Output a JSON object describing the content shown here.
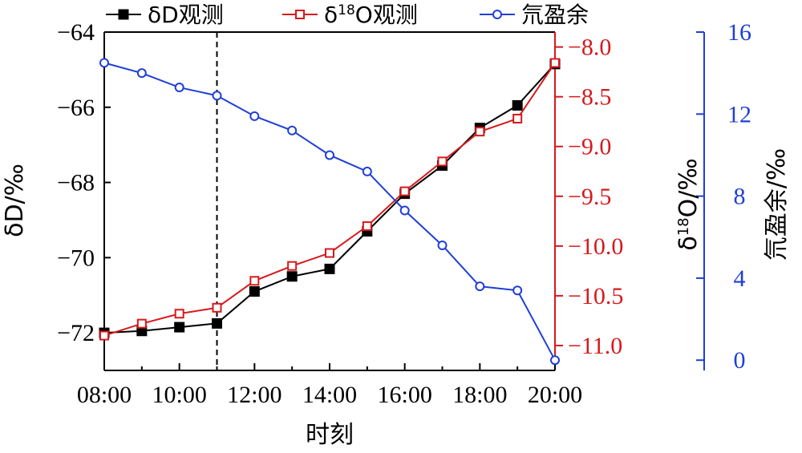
{
  "chart_data": {
    "type": "line",
    "xlabel": "时刻",
    "x": [
      "08:00",
      "09:00",
      "10:00",
      "11:00",
      "12:00",
      "13:00",
      "14:00",
      "15:00",
      "16:00",
      "17:00",
      "18:00",
      "19:00",
      "20:00"
    ],
    "x_ticks": [
      "08:00",
      "10:00",
      "12:00",
      "14:00",
      "16:00",
      "18:00",
      "20:00"
    ],
    "vline_at": "11:00",
    "axes": {
      "left": {
        "label": "δD/‰",
        "lim": [
          -73,
          -64
        ],
        "ticks": [
          "−64",
          "−66",
          "−68",
          "−70",
          "−72"
        ],
        "tick_values": [
          -64,
          -66,
          -68,
          -70,
          -72
        ],
        "color": "#000000"
      },
      "right1": {
        "label_prefix": "δ",
        "label_sup": "18",
        "label_suffix": "O/‰",
        "lim": [
          -11.25,
          -7.85
        ],
        "ticks": [
          "−8.0",
          "−8.5",
          "−9.0",
          "−9.5",
          "−10.0",
          "−10.5",
          "−11.0"
        ],
        "tick_values": [
          -8.0,
          -8.5,
          -9.0,
          -9.5,
          -10.0,
          -10.5,
          -11.0
        ],
        "color": "#d7191c"
      },
      "right2": {
        "label": "氘盈余/‰",
        "lim": [
          -0.5,
          16
        ],
        "ticks": [
          "0",
          "4",
          "8",
          "12",
          "16"
        ],
        "tick_values": [
          0,
          4,
          8,
          12,
          16
        ],
        "color": "#1f3fd6"
      }
    },
    "series": [
      {
        "name": "δD观测",
        "axis": "left",
        "color": "#000000",
        "marker": "filled-square",
        "values": [
          -72.0,
          -71.95,
          -71.85,
          -71.75,
          -70.9,
          -70.5,
          -70.3,
          -69.3,
          -68.3,
          -67.55,
          -66.55,
          -65.95,
          -64.85
        ]
      },
      {
        "name_prefix": "δ",
        "name_sup": "18",
        "name_suffix": "O观测",
        "axis": "right1",
        "color": "#d7191c",
        "marker": "open-square",
        "values": [
          -10.9,
          -10.78,
          -10.68,
          -10.62,
          -10.35,
          -10.2,
          -10.07,
          -9.8,
          -9.45,
          -9.15,
          -8.85,
          -8.72,
          -8.16
        ]
      },
      {
        "name": "氘盈余",
        "axis": "right2",
        "color": "#1f3fd6",
        "marker": "open-circle",
        "values": [
          14.5,
          14.0,
          13.3,
          12.9,
          11.9,
          11.2,
          10.0,
          9.2,
          7.3,
          5.6,
          3.6,
          3.4,
          0.0
        ]
      }
    ],
    "legend_position": "top",
    "grid": false
  }
}
